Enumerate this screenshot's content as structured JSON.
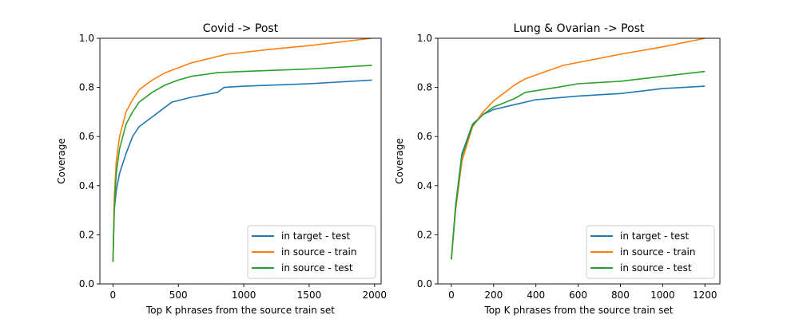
{
  "chart_data": [
    {
      "type": "line",
      "title": "Covid -> Post",
      "xlabel": "Top K phrases from the source train set",
      "ylabel": "Coverage",
      "xlim": [
        -100,
        2050
      ],
      "ylim": [
        0,
        1
      ],
      "xticks": [
        0,
        500,
        1000,
        1500,
        2000
      ],
      "xtick_labels": [
        "0",
        "500",
        "1000",
        "1500",
        "2000"
      ],
      "yticks": [
        0,
        0.2,
        0.4,
        0.6,
        0.8,
        1.0
      ],
      "ytick_labels": [
        "0.0",
        "0.2",
        "0.4",
        "0.6",
        "0.8",
        "1.0"
      ],
      "legend_position": "lower-right",
      "grid": false,
      "series": [
        {
          "name": "in target - test",
          "color": "#1f77b4",
          "x": [
            0,
            10,
            25,
            50,
            100,
            150,
            200,
            300,
            400,
            450,
            600,
            800,
            850,
            1000,
            1500,
            1980
          ],
          "y": [
            0.09,
            0.3,
            0.38,
            0.45,
            0.53,
            0.6,
            0.64,
            0.68,
            0.72,
            0.74,
            0.76,
            0.78,
            0.8,
            0.805,
            0.815,
            0.83
          ]
        },
        {
          "name": "in source - train",
          "color": "#ff7f0e",
          "x": [
            0,
            10,
            25,
            50,
            100,
            150,
            200,
            300,
            400,
            500,
            600,
            870,
            1200,
            1500,
            1975
          ],
          "y": [
            0.09,
            0.35,
            0.5,
            0.6,
            0.7,
            0.75,
            0.79,
            0.83,
            0.86,
            0.88,
            0.9,
            0.935,
            0.955,
            0.97,
            1.0
          ]
        },
        {
          "name": "in source - test",
          "color": "#2ca02c",
          "x": [
            0,
            10,
            25,
            50,
            100,
            150,
            200,
            300,
            400,
            500,
            600,
            800,
            1000,
            1500,
            1980
          ],
          "y": [
            0.09,
            0.3,
            0.45,
            0.55,
            0.65,
            0.7,
            0.74,
            0.78,
            0.81,
            0.83,
            0.845,
            0.86,
            0.865,
            0.875,
            0.89
          ]
        }
      ]
    },
    {
      "type": "line",
      "title": "Lung & Ovarian -> Post",
      "xlabel": "Top K phrases from the source train set",
      "ylabel": "Coverage",
      "xlim": [
        -64,
        1271
      ],
      "ylim": [
        0,
        1
      ],
      "xticks": [
        0,
        200,
        400,
        600,
        800,
        1000,
        1200
      ],
      "xtick_labels": [
        "0",
        "200",
        "400",
        "600",
        "800",
        "1000",
        "1200"
      ],
      "yticks": [
        0,
        0.2,
        0.4,
        0.6,
        0.8,
        1.0
      ],
      "ytick_labels": [
        "0.0",
        "0.2",
        "0.4",
        "0.6",
        "0.8",
        "1.0"
      ],
      "legend_position": "lower-right",
      "grid": false,
      "series": [
        {
          "name": "in target - test",
          "color": "#1f77b4",
          "x": [
            0,
            20,
            50,
            100,
            150,
            200,
            300,
            400,
            600,
            800,
            1000,
            1200
          ],
          "y": [
            0.1,
            0.32,
            0.53,
            0.65,
            0.69,
            0.71,
            0.73,
            0.75,
            0.765,
            0.775,
            0.795,
            0.805
          ]
        },
        {
          "name": "in source - train",
          "color": "#ff7f0e",
          "x": [
            0,
            20,
            50,
            100,
            150,
            200,
            300,
            350,
            530,
            800,
            1000,
            1200
          ],
          "y": [
            0.1,
            0.3,
            0.5,
            0.64,
            0.7,
            0.745,
            0.81,
            0.835,
            0.89,
            0.935,
            0.965,
            1.0
          ]
        },
        {
          "name": "in source - test",
          "color": "#2ca02c",
          "x": [
            0,
            20,
            50,
            100,
            150,
            200,
            300,
            350,
            500,
            600,
            800,
            1000,
            1200
          ],
          "y": [
            0.1,
            0.31,
            0.52,
            0.645,
            0.69,
            0.72,
            0.755,
            0.78,
            0.8,
            0.815,
            0.825,
            0.845,
            0.865
          ]
        }
      ]
    }
  ]
}
